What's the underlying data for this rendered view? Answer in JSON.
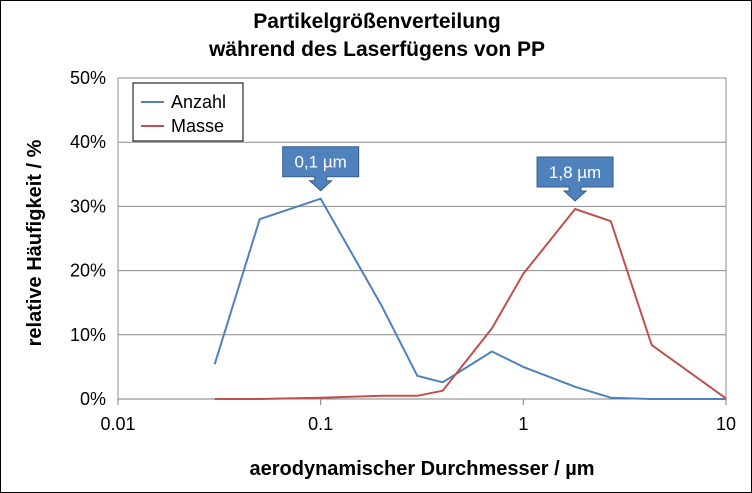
{
  "chart_data": {
    "type": "line",
    "title": [
      "Partikelgrößenverteilung",
      "während des Laserfügens von PP"
    ],
    "xlabel": "aerodynamischer Durchmesser / µm",
    "ylabel": "relative Häufigkeit / %",
    "xscale": "log",
    "xlim": [
      0.01,
      10
    ],
    "ylim": [
      0,
      50
    ],
    "xticks": [
      0.01,
      0.1,
      1,
      10
    ],
    "xtick_labels": [
      "0.01",
      "0.1",
      "1",
      "10"
    ],
    "yticks": [
      0,
      10,
      20,
      30,
      40,
      50
    ],
    "ytick_labels": [
      "0%",
      "10%",
      "20%",
      "30%",
      "40%",
      "50%"
    ],
    "grid": "horizontal",
    "legend": "top-left",
    "series": [
      {
        "name": "Anzahl",
        "color": "#4f81bd",
        "x": [
          0.03,
          0.05,
          0.1,
          0.2,
          0.3,
          0.4,
          0.7,
          1.0,
          1.8,
          2.7,
          4.3,
          10
        ],
        "y": [
          5.4,
          28.0,
          31.2,
          14.5,
          3.6,
          2.6,
          7.4,
          5.0,
          1.9,
          0.2,
          0.0,
          0.0
        ]
      },
      {
        "name": "Masse",
        "color": "#c0504d",
        "x": [
          0.03,
          0.05,
          0.1,
          0.2,
          0.3,
          0.4,
          0.7,
          1.0,
          1.8,
          2.7,
          4.3,
          10
        ],
        "y": [
          0.0,
          0.0,
          0.2,
          0.5,
          0.5,
          1.3,
          11.0,
          19.5,
          29.6,
          27.7,
          8.4,
          0.1
        ]
      }
    ],
    "annotations": [
      {
        "text": "0,1 µm",
        "x": 0.1,
        "y": 31.2
      },
      {
        "text": "1,8 µm",
        "x": 1.8,
        "y": 29.6
      }
    ]
  }
}
